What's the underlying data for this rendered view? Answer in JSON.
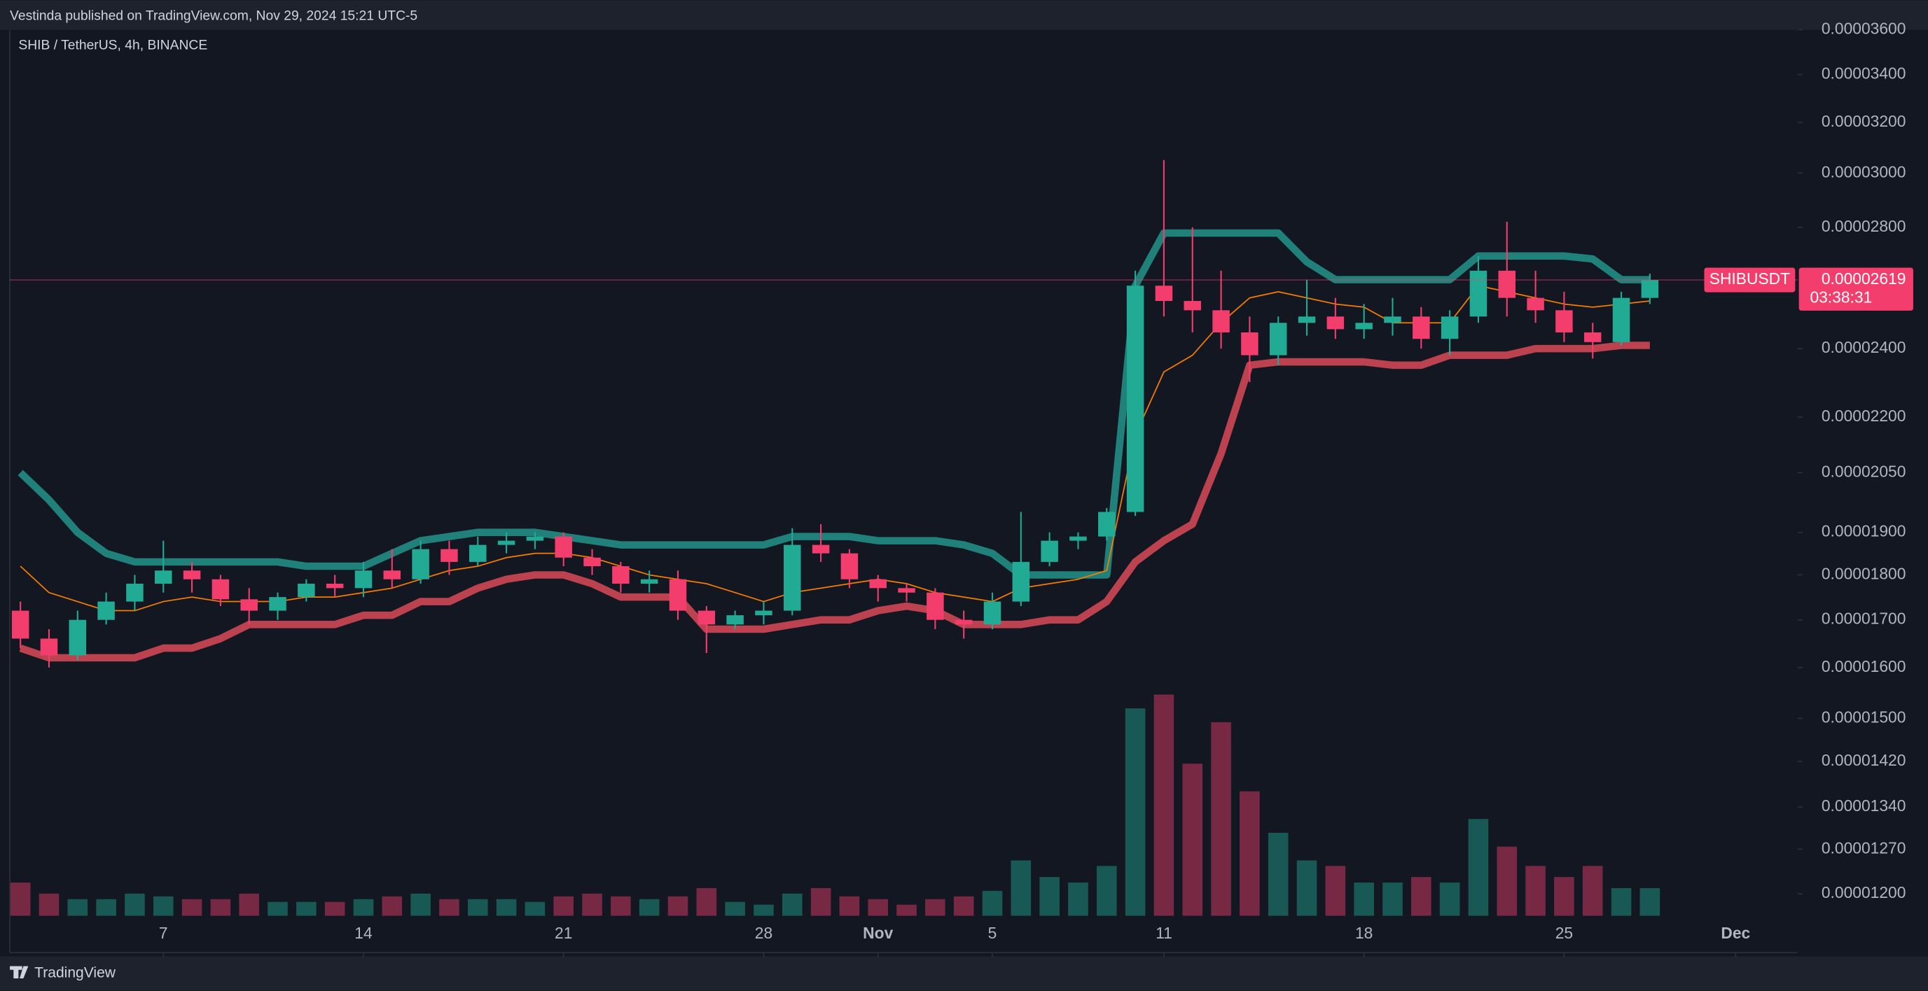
{
  "header": {
    "title": "Vestinda published on TradingView.com, Nov 29, 2024 15:21 UTC-5"
  },
  "footer": {
    "brand": "TradingView"
  },
  "chart_data": {
    "type": "candlestick",
    "title": "SHIB / TetherUS, 4h, BINANCE",
    "symbol_tag": "SHIBUSDT",
    "countdown": "03:38:31",
    "log_scale": true,
    "up_color": "#22ab94",
    "down_color": "#f23d6d",
    "x": [
      0,
      1,
      2,
      3,
      4,
      5,
      6,
      7,
      8,
      9,
      10,
      11,
      12,
      13,
      14,
      15,
      16,
      17,
      18,
      19,
      20,
      21,
      22,
      23,
      24,
      25,
      26,
      27,
      28,
      29,
      30,
      31,
      32,
      33,
      34,
      35,
      36,
      37,
      38,
      39,
      40,
      41,
      42,
      43,
      44,
      45,
      46,
      47,
      48,
      49,
      50,
      51,
      52,
      53,
      54,
      55,
      56,
      57
    ],
    "open": [
      1.72e-05,
      1.66e-05,
      1.625e-05,
      1.7e-05,
      1.74e-05,
      1.78e-05,
      1.81e-05,
      1.79e-05,
      1.745e-05,
      1.72e-05,
      1.75e-05,
      1.78e-05,
      1.77e-05,
      1.81e-05,
      1.79e-05,
      1.86e-05,
      1.83e-05,
      1.87e-05,
      1.88e-05,
      1.89e-05,
      1.84e-05,
      1.82e-05,
      1.78e-05,
      1.79e-05,
      1.72e-05,
      1.69e-05,
      1.71e-05,
      1.72e-05,
      1.87e-05,
      1.85e-05,
      1.79e-05,
      1.77e-05,
      1.76e-05,
      1.7e-05,
      1.69e-05,
      1.74e-05,
      1.83e-05,
      1.88e-05,
      1.89e-05,
      1.95e-05,
      2.6e-05,
      2.55e-05,
      2.52e-05,
      2.45e-05,
      2.38e-05,
      2.48e-05,
      2.5e-05,
      2.46e-05,
      2.48e-05,
      2.5e-05,
      2.43e-05,
      2.5e-05,
      2.65e-05,
      2.56e-05,
      2.52e-05,
      2.45e-05,
      2.42e-05,
      2.56e-05
    ],
    "high": [
      1.74e-05,
      1.68e-05,
      1.72e-05,
      1.76e-05,
      1.8e-05,
      1.88e-05,
      1.83e-05,
      1.8e-05,
      1.77e-05,
      1.76e-05,
      1.79e-05,
      1.8e-05,
      1.83e-05,
      1.86e-05,
      1.88e-05,
      1.88e-05,
      1.89e-05,
      1.9e-05,
      1.9e-05,
      1.9e-05,
      1.86e-05,
      1.83e-05,
      1.81e-05,
      1.81e-05,
      1.73e-05,
      1.72e-05,
      1.74e-05,
      1.91e-05,
      1.92e-05,
      1.86e-05,
      1.8e-05,
      1.78e-05,
      1.77e-05,
      1.72e-05,
      1.76e-05,
      1.95e-05,
      1.9e-05,
      1.9e-05,
      1.96e-05,
      2.65e-05,
      3.05e-05,
      2.8e-05,
      2.65e-05,
      2.5e-05,
      2.5e-05,
      2.62e-05,
      2.56e-05,
      2.54e-05,
      2.56e-05,
      2.53e-05,
      2.52e-05,
      2.7e-05,
      2.82e-05,
      2.65e-05,
      2.58e-05,
      2.48e-05,
      2.58e-05,
      2.64e-05
    ],
    "low": [
      1.64e-05,
      1.6e-05,
      1.615e-05,
      1.69e-05,
      1.72e-05,
      1.76e-05,
      1.76e-05,
      1.73e-05,
      1.69e-05,
      1.7e-05,
      1.74e-05,
      1.75e-05,
      1.75e-05,
      1.77e-05,
      1.78e-05,
      1.8e-05,
      1.82e-05,
      1.85e-05,
      1.86e-05,
      1.82e-05,
      1.8e-05,
      1.76e-05,
      1.76e-05,
      1.7e-05,
      1.63e-05,
      1.68e-05,
      1.69e-05,
      1.71e-05,
      1.83e-05,
      1.77e-05,
      1.74e-05,
      1.74e-05,
      1.68e-05,
      1.66e-05,
      1.68e-05,
      1.73e-05,
      1.82e-05,
      1.86e-05,
      1.88e-05,
      1.94e-05,
      2.5e-05,
      2.45e-05,
      2.4e-05,
      2.3e-05,
      2.35e-05,
      2.44e-05,
      2.43e-05,
      2.43e-05,
      2.44e-05,
      2.4e-05,
      2.38e-05,
      2.48e-05,
      2.5e-05,
      2.48e-05,
      2.42e-05,
      2.37e-05,
      2.41e-05,
      2.54e-05
    ],
    "close": [
      1.66e-05,
      1.625e-05,
      1.7e-05,
      1.74e-05,
      1.78e-05,
      1.81e-05,
      1.79e-05,
      1.745e-05,
      1.72e-05,
      1.75e-05,
      1.78e-05,
      1.77e-05,
      1.81e-05,
      1.79e-05,
      1.86e-05,
      1.83e-05,
      1.87e-05,
      1.88e-05,
      1.89e-05,
      1.84e-05,
      1.82e-05,
      1.78e-05,
      1.79e-05,
      1.72e-05,
      1.69e-05,
      1.71e-05,
      1.72e-05,
      1.87e-05,
      1.85e-05,
      1.79e-05,
      1.77e-05,
      1.76e-05,
      1.7e-05,
      1.69e-05,
      1.74e-05,
      1.83e-05,
      1.88e-05,
      1.89e-05,
      1.95e-05,
      2.6e-05,
      2.55e-05,
      2.52e-05,
      2.45e-05,
      2.38e-05,
      2.48e-05,
      2.5e-05,
      2.46e-05,
      2.48e-05,
      2.5e-05,
      2.43e-05,
      2.5e-05,
      2.65e-05,
      2.56e-05,
      2.52e-05,
      2.45e-05,
      2.42e-05,
      2.56e-05,
      2.619e-05
    ],
    "indicators": [
      {
        "color": "#26a69a",
        "width": 6,
        "values": [
          2.05e-05,
          1.98e-05,
          1.9e-05,
          1.85e-05,
          1.83e-05,
          1.83e-05,
          1.83e-05,
          1.83e-05,
          1.83e-05,
          1.83e-05,
          1.82e-05,
          1.82e-05,
          1.82e-05,
          1.85e-05,
          1.88e-05,
          1.89e-05,
          1.9e-05,
          1.9e-05,
          1.9e-05,
          1.89e-05,
          1.88e-05,
          1.87e-05,
          1.87e-05,
          1.87e-05,
          1.87e-05,
          1.87e-05,
          1.87e-05,
          1.89e-05,
          1.89e-05,
          1.89e-05,
          1.88e-05,
          1.88e-05,
          1.88e-05,
          1.87e-05,
          1.85e-05,
          1.8e-05,
          1.8e-05,
          1.8e-05,
          1.8e-05,
          2.6e-05,
          2.78e-05,
          2.78e-05,
          2.78e-05,
          2.78e-05,
          2.78e-05,
          2.68e-05,
          2.62e-05,
          2.62e-05,
          2.62e-05,
          2.62e-05,
          2.62e-05,
          2.7e-05,
          2.7e-05,
          2.7e-05,
          2.7e-05,
          2.69e-05,
          2.62e-05,
          2.62e-05
        ]
      },
      {
        "color": "#f7525f",
        "width": 6,
        "values": [
          1.64e-05,
          1.62e-05,
          1.62e-05,
          1.62e-05,
          1.62e-05,
          1.64e-05,
          1.64e-05,
          1.66e-05,
          1.69e-05,
          1.69e-05,
          1.69e-05,
          1.69e-05,
          1.71e-05,
          1.71e-05,
          1.74e-05,
          1.74e-05,
          1.77e-05,
          1.79e-05,
          1.8e-05,
          1.8e-05,
          1.78e-05,
          1.75e-05,
          1.75e-05,
          1.75e-05,
          1.68e-05,
          1.68e-05,
          1.68e-05,
          1.69e-05,
          1.7e-05,
          1.7e-05,
          1.72e-05,
          1.73e-05,
          1.72e-05,
          1.69e-05,
          1.69e-05,
          1.69e-05,
          1.7e-05,
          1.7e-05,
          1.74e-05,
          1.83e-05,
          1.88e-05,
          1.92e-05,
          2.1e-05,
          2.35e-05,
          2.36e-05,
          2.36e-05,
          2.36e-05,
          2.36e-05,
          2.35e-05,
          2.35e-05,
          2.38e-05,
          2.38e-05,
          2.38e-05,
          2.4e-05,
          2.4e-05,
          2.4e-05,
          2.41e-05,
          2.41e-05
        ]
      },
      {
        "color": "#f57c00",
        "width": 1,
        "values": [
          1.82e-05,
          1.76e-05,
          1.74e-05,
          1.72e-05,
          1.72e-05,
          1.74e-05,
          1.75e-05,
          1.74e-05,
          1.74e-05,
          1.74e-05,
          1.75e-05,
          1.75e-05,
          1.76e-05,
          1.77e-05,
          1.79e-05,
          1.81e-05,
          1.82e-05,
          1.84e-05,
          1.85e-05,
          1.85e-05,
          1.84e-05,
          1.82e-05,
          1.8e-05,
          1.79e-05,
          1.78e-05,
          1.76e-05,
          1.74e-05,
          1.76e-05,
          1.77e-05,
          1.78e-05,
          1.79e-05,
          1.78e-05,
          1.76e-05,
          1.75e-05,
          1.74e-05,
          1.77e-05,
          1.78e-05,
          1.79e-05,
          1.81e-05,
          2.15e-05,
          2.33e-05,
          2.38e-05,
          2.48e-05,
          2.56e-05,
          2.58e-05,
          2.56e-05,
          2.54e-05,
          2.53e-05,
          2.48e-05,
          2.48e-05,
          2.48e-05,
          2.6e-05,
          2.58e-05,
          2.56e-05,
          2.54e-05,
          2.53e-05,
          2.54e-05,
          2.55e-05
        ]
      }
    ],
    "volume": [
      12,
      8,
      6,
      6,
      8,
      7,
      6,
      6,
      8,
      5,
      5,
      5,
      6,
      7,
      8,
      6,
      6,
      6,
      5,
      7,
      8,
      7,
      6,
      7,
      10,
      5,
      4,
      8,
      10,
      7,
      6,
      4,
      6,
      7,
      9,
      20,
      14,
      12,
      18,
      75,
      80,
      55,
      70,
      45,
      30,
      20,
      18,
      12,
      12,
      14,
      12,
      35,
      25,
      18,
      14,
      18,
      10,
      10
    ],
    "volume_lim": [
      0,
      100
    ],
    "xlim": [
      -0.37,
      62.17
    ],
    "xticks": [
      {
        "value": 5,
        "label": "7"
      },
      {
        "value": 12,
        "label": "14"
      },
      {
        "value": 19,
        "label": "21"
      },
      {
        "value": 26,
        "label": "28"
      },
      {
        "value": 30,
        "label": "Nov"
      },
      {
        "value": 34,
        "label": "5"
      },
      {
        "value": 40,
        "label": "11"
      },
      {
        "value": 47,
        "label": "18"
      },
      {
        "value": 54,
        "label": "25"
      },
      {
        "value": 60,
        "label": "Dec"
      }
    ],
    "ylim": [
      1.167e-05,
      3.611e-05
    ],
    "yticks": [
      {
        "value": 1.2e-05,
        "label": "0.00001200"
      },
      {
        "value": 1.27e-05,
        "label": "0.00001270"
      },
      {
        "value": 1.34e-05,
        "label": "0.00001340"
      },
      {
        "value": 1.42e-05,
        "label": "0.00001420"
      },
      {
        "value": 1.5e-05,
        "label": "0.00001500"
      },
      {
        "value": 1.6e-05,
        "label": "0.00001600"
      },
      {
        "value": 1.7e-05,
        "label": "0.00001700"
      },
      {
        "value": 1.8e-05,
        "label": "0.00001800"
      },
      {
        "value": 1.9e-05,
        "label": "0.00001900"
      },
      {
        "value": 2.05e-05,
        "label": "0.00002050"
      },
      {
        "value": 2.2e-05,
        "label": "0.00002200"
      },
      {
        "value": 2.4e-05,
        "label": "0.00002400"
      },
      {
        "value": 2.8e-05,
        "label": "0.00002800"
      },
      {
        "value": 3e-05,
        "label": "0.00003000"
      },
      {
        "value": 3.2e-05,
        "label": "0.00003200"
      },
      {
        "value": 3.4e-05,
        "label": "0.00003400"
      },
      {
        "value": 3.6e-05,
        "label": "0.00003600"
      }
    ]
  }
}
